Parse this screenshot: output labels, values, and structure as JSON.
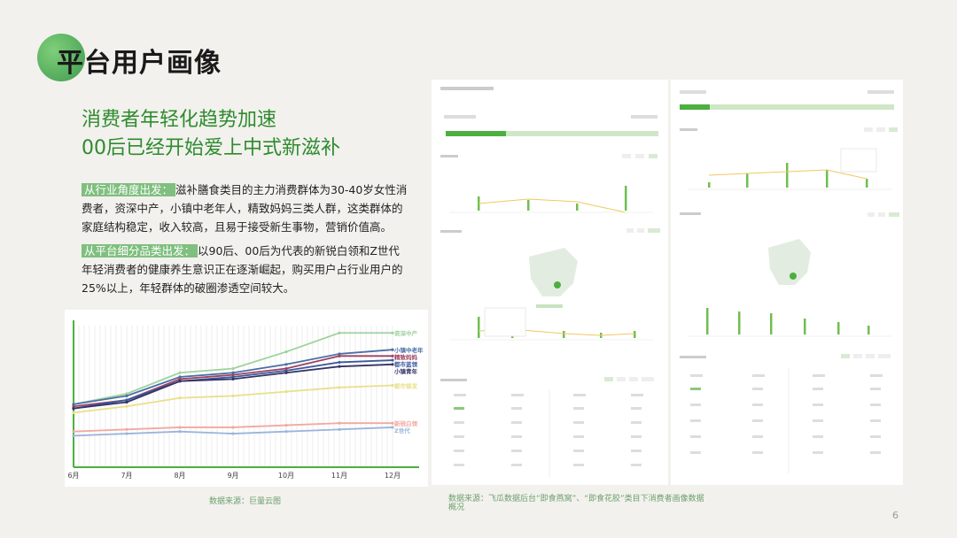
{
  "title": "平台用户画像",
  "headline": [
    "消费者年轻化趋势加速",
    "00后已经开始爱上中式新滋补"
  ],
  "paragraphs": [
    {
      "tag": "从行业角度出发：",
      "text": "滋补膳食类目的主力消费群体为30-40岁女性消费者，资深中产，小镇中老年人，精致妈妈三类人群，这类群体的家庭结构稳定，收入较高，且易于接受新生事物，营销价值高。"
    },
    {
      "tag": "从平台细分品类出发：",
      "text": "以90后、00后为代表的新锐白领和Z世代年轻消费者的健康养生意识正在逐渐崛起，购买用户占行业用户的25%以上，年轻群体的破圈渗透空间较大。"
    }
  ],
  "chart_data": {
    "type": "line",
    "categories": [
      "6月",
      "7月",
      "8月",
      "9月",
      "10月",
      "11月",
      "12月"
    ],
    "series": [
      {
        "name": "资深中产",
        "color": "#9ed39e",
        "values": [
          30,
          35,
          45,
          47,
          55,
          64,
          64
        ]
      },
      {
        "name": "小镇中老年",
        "color": "#4a6fa5",
        "values": [
          30,
          34,
          43,
          45,
          49,
          54,
          56
        ]
      },
      {
        "name": "精致妈妈",
        "color": "#a04060",
        "values": [
          29,
          32,
          42,
          44,
          47,
          53,
          53
        ]
      },
      {
        "name": "都市蓝领",
        "color": "#3a5a9a",
        "values": [
          28,
          32,
          41,
          43,
          46,
          50,
          51
        ]
      },
      {
        "name": "小镇青年",
        "color": "#333366",
        "values": [
          28,
          31,
          41,
          42,
          45,
          48,
          49
        ]
      },
      {
        "name": "都市银发",
        "color": "#e8e08a",
        "values": [
          26,
          29,
          33,
          34,
          36,
          38,
          39
        ]
      },
      {
        "name": "新锐白领",
        "color": "#f2a8a0",
        "values": [
          17,
          18,
          19,
          19,
          20,
          21,
          21
        ]
      },
      {
        "name": "Z世代",
        "color": "#9ab5dc",
        "values": [
          15,
          16,
          17,
          16,
          17,
          18,
          19
        ]
      }
    ],
    "ylim": [
      0,
      70
    ]
  },
  "source_left": "数据来源：巨量云图",
  "source_right": "数据来源：飞瓜数据后台“即食燕窝”、“即食花胶”类目下消费者画像数据概况",
  "page_number": "6"
}
